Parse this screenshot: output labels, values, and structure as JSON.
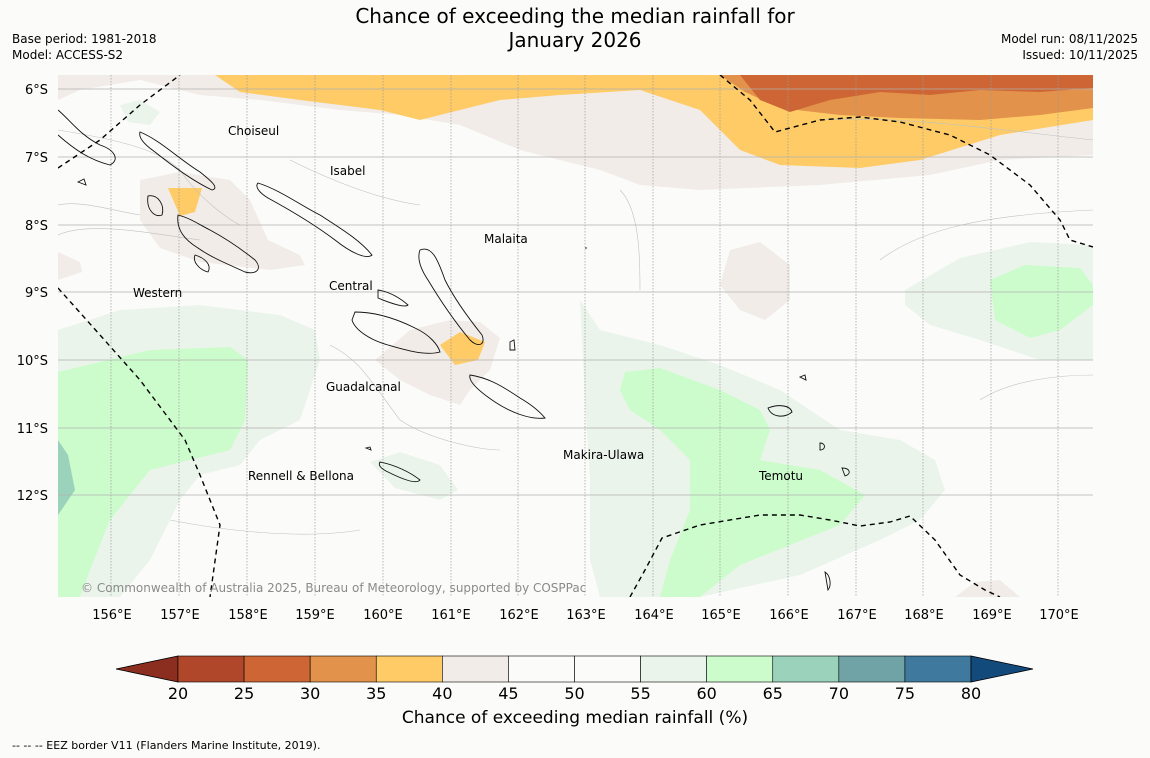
{
  "header": {
    "title_line1": "Chance of exceeding the median rainfall for",
    "title_line2": "January 2026",
    "base_period": "Base period: 1981-2018",
    "model": "Model: ACCESS-S2",
    "model_run": "Model run: 08/11/2025",
    "issued": "Issued: 10/11/2025"
  },
  "map": {
    "lon_labels": [
      "156°E",
      "157°E",
      "158°E",
      "159°E",
      "160°E",
      "161°E",
      "162°E",
      "163°E",
      "164°E",
      "165°E",
      "166°E",
      "167°E",
      "168°E",
      "169°E",
      "170°E"
    ],
    "lat_labels": [
      "6°S",
      "7°S",
      "8°S",
      "9°S",
      "10°S",
      "11°S",
      "12°S"
    ],
    "regions": [
      "Choiseul",
      "Isabel",
      "Malaita",
      "Central",
      "Western",
      "Guadalcanal",
      "Makira-Ulawa",
      "Rennell & Bellona",
      "Temotu"
    ],
    "copyright": "© Commonwealth of Australia 2025, Bureau of Meteorology, supported by COSPPac"
  },
  "legend": {
    "ticks": [
      "20",
      "25",
      "30",
      "35",
      "40",
      "45",
      "50",
      "55",
      "60",
      "65",
      "70",
      "75",
      "80"
    ],
    "colors": [
      "#8b2e1f",
      "#b0472a",
      "#cd6634",
      "#e2924a",
      "#fecb66",
      "#f2ece8",
      "#fbfcfa",
      "#fbfcfa",
      "#ebf4eb",
      "#ccfccc",
      "#9bd2bb",
      "#6fa3a6",
      "#3f7a9e",
      "#134a7c"
    ],
    "label": "Chance of exceeding median rainfall (%)"
  },
  "footer": {
    "eez_note": "--  --  -- EEZ border V11 (Flanders Marine Institute, 2019)."
  }
}
